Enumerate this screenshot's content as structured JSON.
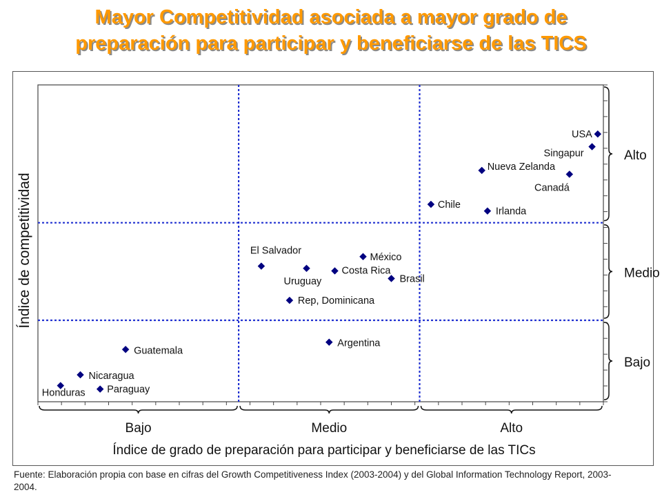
{
  "title": {
    "line1": "Mayor Competitividad asociada a mayor grado de",
    "line2": "preparación para participar y beneficiarse de las TICS"
  },
  "source": "Fuente: Elaboración propia con base en cifras del Growth Competitiveness Index (2003-2004) y del Global Information Technology Report, 2003-2004.",
  "chart_data": {
    "type": "scatter",
    "xlabel": "Índice de grado de preparación para participar y beneficiarse de las TICs",
    "ylabel": "Índice de competitividad",
    "xlim": [
      0,
      100
    ],
    "ylim": [
      0,
      100
    ],
    "x_categories": [
      "Bajo",
      "Medio",
      "Alto"
    ],
    "y_categories": [
      "Bajo",
      "Medio",
      "Alto"
    ],
    "x_dividers": [
      35.5,
      67.5
    ],
    "y_dividers": [
      25.7,
      56.5
    ],
    "marker_color": "#000080",
    "divider_color": "#1F2FD0",
    "points": [
      {
        "label": "USA",
        "x": 99.0,
        "y": 84.5
      },
      {
        "label": "Singapur",
        "x": 98.0,
        "y": 80.5
      },
      {
        "label": "Nueva Zelanda",
        "x": 78.5,
        "y": 73.0
      },
      {
        "label": "Canadá",
        "x": 94.0,
        "y": 71.8
      },
      {
        "label": "Chile",
        "x": 69.5,
        "y": 62.3
      },
      {
        "label": "Irlanda",
        "x": 79.5,
        "y": 60.2
      },
      {
        "label": "El Salvador",
        "x": 39.5,
        "y": 42.8
      },
      {
        "label": "México",
        "x": 57.5,
        "y": 45.8
      },
      {
        "label": "Uruguay",
        "x": 47.5,
        "y": 42.1
      },
      {
        "label": "Costa Rica",
        "x": 52.5,
        "y": 41.3
      },
      {
        "label": "Brasil",
        "x": 62.5,
        "y": 38.9
      },
      {
        "label": "Rep, Dominicana",
        "x": 44.5,
        "y": 32.0
      },
      {
        "label": "Argentina",
        "x": 51.5,
        "y": 18.8
      },
      {
        "label": "Guatemala",
        "x": 15.5,
        "y": 16.5
      },
      {
        "label": "Nicaragua",
        "x": 7.5,
        "y": 8.5
      },
      {
        "label": "Honduras",
        "x": 4.0,
        "y": 5.1
      },
      {
        "label": "Paraguay",
        "x": 11.0,
        "y": 4.0
      }
    ]
  }
}
